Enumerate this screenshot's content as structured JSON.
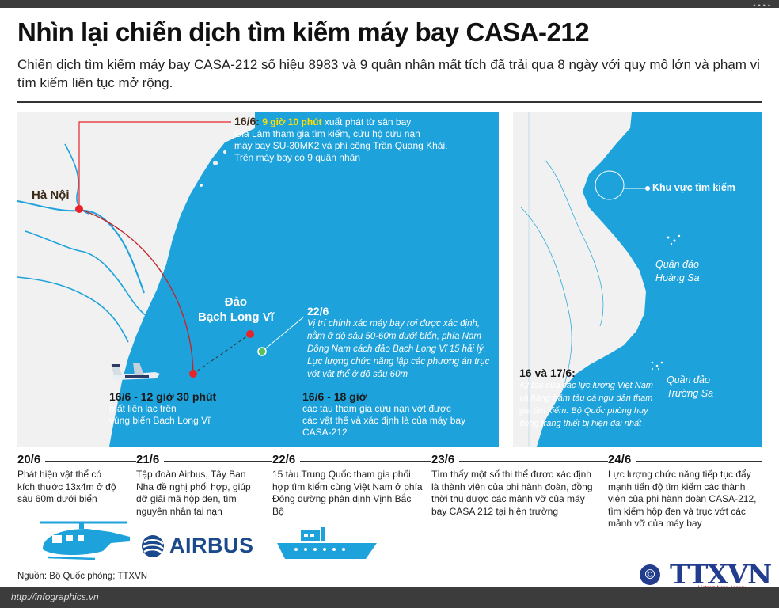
{
  "header": {
    "title": "Nhìn lại chiến dịch tìm kiếm máy bay CASA-212",
    "subtitle": "Chiến dịch tìm kiếm máy bay CASA-212 số hiệu 8983 và 9 quân nhân mất tích đã trải qua 8 ngày với quy mô lớn và phạm vi tìm kiếm liên tục mở rộng."
  },
  "left_map": {
    "hanoi": "Hà Nội",
    "island": [
      "Đảo",
      "Bạch Long Vĩ"
    ],
    "event_1606_date": "16/6:",
    "event_1606_time": "9 giờ 10 phút",
    "event_1606_text": [
      " xuất phát từ sân bay",
      "Gia Lâm tham gia tìm kiếm, cứu hộ cứu nạn",
      "máy bay SU-30MK2 và phi công Trần Quang Khải.",
      "Trên máy bay có 9 quân nhân"
    ],
    "event_2206_date": "22/6",
    "event_2206_text": "Vị trí chính xác máy bay rơi được xác định, nằm ở độ sâu 50-60m dưới biển, phía Nam Đông Nam cách đảo Bạch Long Vĩ 15 hải lý. Lực lượng chức năng lập các phương án trục vớt vật thể ở độ sâu 60m",
    "event_lost_date": "16/6 - 12 giờ 30 phút",
    "event_lost_text": [
      "mất liên lạc trên",
      "vùng biển Bạch Long Vĩ"
    ],
    "event_18h_date": "16/6 - 18 giờ",
    "event_18h_text": [
      "các tàu tham gia cứu nạn vớt được",
      "các vật thể và xác định là của máy bay",
      "CASA-212"
    ]
  },
  "right_map": {
    "search_area": "Khu vực tìm kiếm",
    "hoang_sa": [
      "Quần đảo",
      "Hoàng Sa"
    ],
    "truong_sa": [
      "Quần đảo",
      "Trường Sa"
    ],
    "event_date": "16 và 17/6:",
    "event_text": "42 tàu của các lực lượng Việt Nam và hàng trăm tàu cá ngư dân tham gia tìm kiếm. Bộ Quốc phòng huy động trang thiết bị hiện đại nhất"
  },
  "timeline": [
    {
      "date": "20/6",
      "text": "Phát hiện vật thể có kích thước 13x4m ở độ sâu 60m dưới biển"
    },
    {
      "date": "21/6",
      "text": "Tập đoàn Airbus, Tây Ban Nha đề nghị phối hợp, giúp đỡ giải mã hộp đen, tìm nguyên nhân tai nạn"
    },
    {
      "date": "22/6",
      "text": "15 tàu Trung Quốc tham gia phối hợp tìm kiếm cùng Việt Nam ở phía Đông đường phân định Vịnh Bắc Bộ"
    },
    {
      "date": "23/6",
      "text": "Tìm thấy một số thi thể được xác định là thành viên của phi hành đoàn, đồng thời thu được các mảnh vỡ của máy bay CASA 212 tại hiện trường"
    },
    {
      "date": "24/6",
      "text": "Lực lượng chức năng tiếp tục đẩy mạnh tiến độ tìm kiếm các thành viên của phi hành đoàn CASA-212, tìm kiếm hộp đen và trục vớt các mảnh vỡ của máy bay"
    }
  ],
  "airbus_logo": "AIRBUS",
  "source": "Nguồn: Bộ Quốc phòng; TTXVN",
  "url": "http://infographics.vn",
  "copyright_symbol": "©",
  "agency_logo": "TTXVN",
  "agency_sub": "Vietnam News Agency",
  "colors": {
    "sea": "#1da2dc",
    "land": "#f1f1f1",
    "highlight": "#ffe000",
    "marker_red": "#e8232a",
    "marker_green": "#57c15a",
    "brand_blue": "#223d8e"
  }
}
